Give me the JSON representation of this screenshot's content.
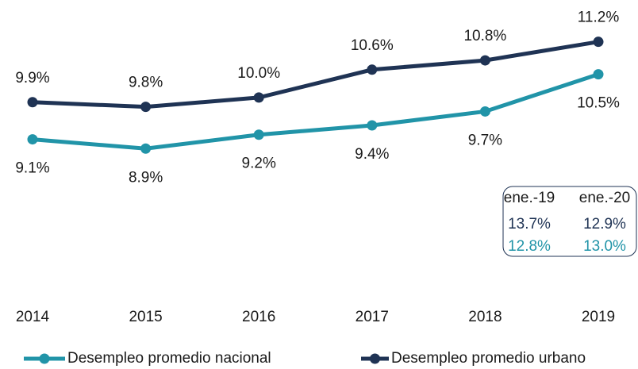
{
  "chart_data": {
    "type": "line",
    "categories": [
      "2014",
      "2015",
      "2016",
      "2017",
      "2018",
      "2019"
    ],
    "series": [
      {
        "name": "Desempleo promedio nacional",
        "color": "#2194a8",
        "values": [
          9.1,
          8.9,
          9.2,
          9.4,
          9.7,
          10.5
        ],
        "value_labels": [
          "9.1%",
          "8.9%",
          "9.2%",
          "9.4%",
          "9.7%",
          "10.5%"
        ]
      },
      {
        "name": "Desempleo promedio urbano",
        "color": "#1f3354",
        "values": [
          9.9,
          9.8,
          10.0,
          10.6,
          10.8,
          11.2
        ],
        "value_labels": [
          "9.9%",
          "9.8%",
          "10.0%",
          "10.6%",
          "10.8%",
          "11.2%"
        ]
      }
    ],
    "ylim": [
      6,
      12.1
    ],
    "inset": {
      "headers": [
        "ene.-19",
        "ene.-20"
      ],
      "rows": [
        [
          "13.7%",
          "12.9%"
        ],
        [
          "12.8%",
          "13.0%"
        ]
      ]
    }
  }
}
